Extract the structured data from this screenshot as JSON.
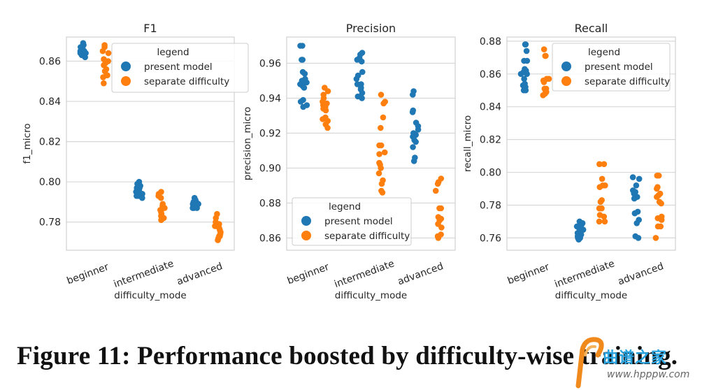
{
  "caption": "Figure 11: Performance boosted by difficulty-wise training.",
  "watermark": {
    "text": "曲谱之家",
    "url": "www.hpppw.com"
  },
  "colors": {
    "present_model": "#1f77b4",
    "separate_difficulty": "#ff7f0e",
    "grid": "#d8d8d8",
    "frame": "#d0d0d0",
    "text": "#262626"
  },
  "chart_data": [
    {
      "type": "scatter",
      "subtype": "strip",
      "title": "F1",
      "xlabel": "difficulty_mode",
      "ylabel": "f1_micro",
      "categories": [
        "beginner",
        "intermediate",
        "advanced"
      ],
      "ylim": [
        0.766,
        0.872
      ],
      "yticks": [
        0.78,
        0.8,
        0.82,
        0.84,
        0.86
      ],
      "ytick_labels": [
        "0.78",
        "0.80",
        "0.82",
        "0.84",
        "0.86"
      ],
      "grid": true,
      "legend": {
        "title": "legend",
        "placement": "top-right",
        "entries": [
          "present model",
          "separate difficulty"
        ]
      },
      "series": [
        {
          "name": "present model",
          "values": [
            [
              0.869,
              0.868,
              0.867,
              0.866,
              0.866,
              0.865,
              0.865,
              0.864,
              0.864,
              0.863,
              0.863,
              0.862,
              0.865,
              0.864
            ],
            [
              0.8,
              0.799,
              0.798,
              0.797,
              0.797,
              0.796,
              0.796,
              0.795,
              0.794,
              0.794,
              0.793,
              0.793,
              0.792,
              0.795
            ],
            [
              0.792,
              0.791,
              0.79,
              0.79,
              0.789,
              0.789,
              0.788,
              0.788,
              0.788,
              0.787,
              0.787,
              0.787
            ]
          ]
        },
        {
          "name": "separate difficulty",
          "values": [
            [
              0.868,
              0.867,
              0.865,
              0.864,
              0.861,
              0.86,
              0.859,
              0.858,
              0.856,
              0.855,
              0.853,
              0.853,
              0.852,
              0.849
            ],
            [
              0.795,
              0.794,
              0.793,
              0.792,
              0.789,
              0.788,
              0.787,
              0.786,
              0.785,
              0.784,
              0.783,
              0.782,
              0.781
            ],
            [
              0.784,
              0.782,
              0.78,
              0.779,
              0.778,
              0.778,
              0.777,
              0.776,
              0.775,
              0.774,
              0.773,
              0.773,
              0.772,
              0.771
            ]
          ]
        }
      ]
    },
    {
      "type": "scatter",
      "subtype": "strip",
      "title": "Precision",
      "xlabel": "difficulty_mode",
      "ylabel": "precision_micro",
      "categories": [
        "beginner",
        "intermediate",
        "advanced"
      ],
      "ylim": [
        0.853,
        0.975
      ],
      "yticks": [
        0.86,
        0.88,
        0.9,
        0.92,
        0.94,
        0.96
      ],
      "ytick_labels": [
        "0.86",
        "0.88",
        "0.90",
        "0.92",
        "0.94",
        "0.96"
      ],
      "grid": true,
      "legend": {
        "title": "legend",
        "placement": "bottom-left",
        "entries": [
          "present model",
          "separate difficulty"
        ]
      },
      "series": [
        {
          "name": "present model",
          "values": [
            [
              0.97,
              0.97,
              0.962,
              0.962,
              0.955,
              0.954,
              0.951,
              0.95,
              0.949,
              0.948,
              0.947,
              0.946,
              0.939,
              0.938,
              0.936,
              0.935
            ],
            [
              0.966,
              0.965,
              0.963,
              0.962,
              0.961,
              0.955,
              0.953,
              0.951,
              0.948,
              0.948,
              0.946,
              0.945,
              0.943,
              0.941,
              0.94
            ],
            [
              0.944,
              0.942,
              0.933,
              0.932,
              0.926,
              0.924,
              0.922,
              0.92,
              0.919,
              0.918,
              0.916,
              0.915,
              0.912,
              0.906,
              0.904
            ]
          ]
        },
        {
          "name": "separate difficulty",
          "values": [
            [
              0.946,
              0.944,
              0.942,
              0.94,
              0.938,
              0.937,
              0.936,
              0.935,
              0.934,
              0.933,
              0.929,
              0.928,
              0.927,
              0.925,
              0.923
            ],
            [
              0.942,
              0.938,
              0.937,
              0.929,
              0.923,
              0.913,
              0.913,
              0.909,
              0.908,
              0.903,
              0.902,
              0.9,
              0.897,
              0.893,
              0.891,
              0.887,
              0.886
            ],
            [
              0.894,
              0.892,
              0.891,
              0.887,
              0.877,
              0.877,
              0.872,
              0.871,
              0.87,
              0.868,
              0.866,
              0.862,
              0.861,
              0.86
            ]
          ]
        }
      ]
    },
    {
      "type": "scatter",
      "subtype": "strip",
      "title": "Recall",
      "xlabel": "difficulty_mode",
      "ylabel": "recall_micro",
      "categories": [
        "beginner",
        "intermediate",
        "advanced"
      ],
      "ylim": [
        0.7525,
        0.8825
      ],
      "yticks": [
        0.76,
        0.78,
        0.8,
        0.82,
        0.84,
        0.86,
        0.88
      ],
      "ytick_labels": [
        "0.76",
        "0.78",
        "0.80",
        "0.82",
        "0.84",
        "0.86",
        "0.88"
      ],
      "grid": true,
      "legend": {
        "title": "legend",
        "placement": "top-right",
        "entries": [
          "present model",
          "separate difficulty"
        ]
      },
      "series": [
        {
          "name": "present model",
          "values": [
            [
              0.878,
              0.878,
              0.874,
              0.868,
              0.868,
              0.863,
              0.862,
              0.861,
              0.86,
              0.86,
              0.857,
              0.854,
              0.853,
              0.852,
              0.85,
              0.85
            ],
            [
              0.77,
              0.769,
              0.768,
              0.767,
              0.766,
              0.765,
              0.765,
              0.764,
              0.763,
              0.762,
              0.761,
              0.76,
              0.76,
              0.759
            ],
            [
              0.797,
              0.796,
              0.792,
              0.789,
              0.788,
              0.787,
              0.785,
              0.784,
              0.776,
              0.775,
              0.771,
              0.769,
              0.761,
              0.76
            ]
          ]
        },
        {
          "name": "separate difficulty",
          "values": [
            [
              0.875,
              0.871,
              0.871,
              0.857,
              0.857,
              0.856,
              0.855,
              0.851,
              0.851,
              0.85,
              0.849,
              0.848,
              0.847
            ],
            [
              0.805,
              0.805,
              0.796,
              0.792,
              0.792,
              0.791,
              0.783,
              0.782,
              0.778,
              0.778,
              0.774,
              0.773,
              0.77,
              0.77
            ],
            [
              0.798,
              0.798,
              0.791,
              0.79,
              0.787,
              0.786,
              0.785,
              0.782,
              0.781,
              0.773,
              0.772,
              0.771,
              0.767,
              0.767,
              0.76
            ]
          ]
        }
      ]
    }
  ]
}
